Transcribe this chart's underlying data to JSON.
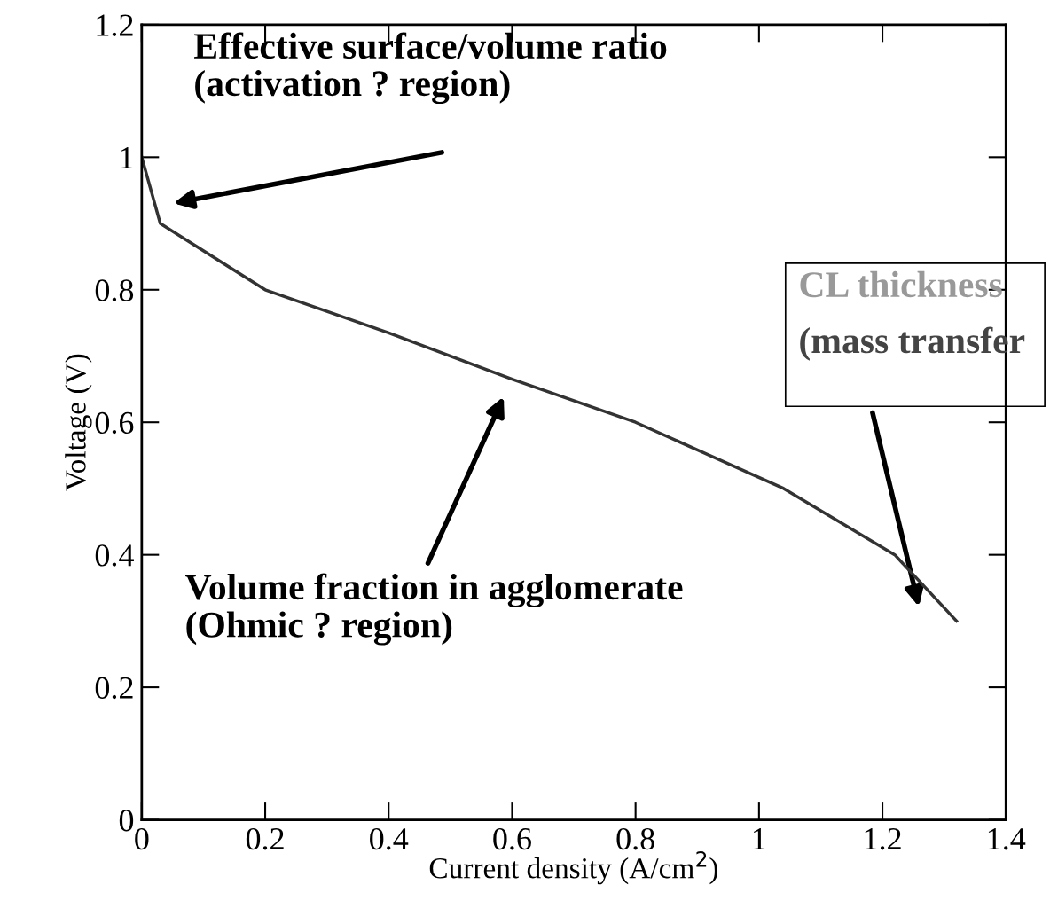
{
  "chart_data": {
    "type": "line",
    "xlabel": "Current density (A/cm$^{2}$)",
    "ylabel": "Voltage (V)",
    "x": [
      0,
      0.03,
      0.2,
      0.4,
      0.6,
      0.8,
      1.04,
      1.22,
      1.32
    ],
    "series": [
      {
        "color": "#333333",
        "values": [
          1.0,
          0.9,
          0.8,
          0.735,
          0.665,
          0.6,
          0.5,
          0.4,
          0.3
        ]
      }
    ],
    "xlim": [
      0,
      1.4
    ],
    "ylim": [
      0,
      1.2
    ],
    "xticks": [
      0,
      0.2,
      0.4,
      0.6,
      0.8,
      1,
      1.2,
      1.4
    ],
    "yticks": [
      0,
      0.2,
      0.4,
      0.6,
      0.8,
      1,
      1.2
    ],
    "grid": false,
    "marker": "none",
    "line_style": "solid",
    "annotations": [
      "Effective surface/volume ratio\n(activation ? region)",
      "Volume fraction in agglomerate\n(Ohmic ? region)",
      "CL thickness",
      "(mass transfer"
    ]
  }
}
